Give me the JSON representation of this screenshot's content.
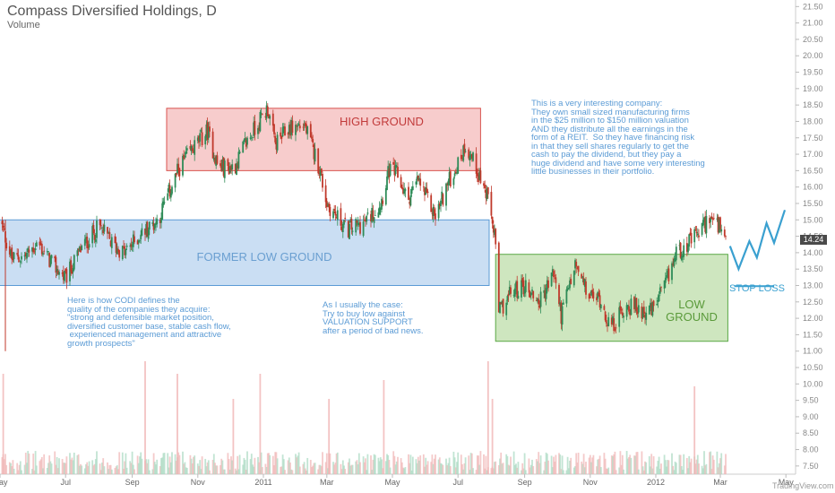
{
  "header": {
    "title": "Compass Diversified Holdings, D",
    "subtitle": "Volume"
  },
  "annotations": {
    "high_ground": "HIGH GROUND",
    "former_low_ground": "FORMER LOW GROUND",
    "low_ground": "LOW\nGROUND",
    "stop_loss": "STOP LOSS",
    "note_top_right": "This is a very interesting company:\nThey own small sized manufacturing firms\nin the $25 million to $150 million valuation\nAND they distribute all the earnings in the\nform of a REIT.  So they have financing risk\nin that they sell shares regularly to get the\ncash to pay the dividend, but they pay a\nhuge dividend and have some very interesting\nlittle businesses in their portfolio.",
    "note_bottom_left": "Here is how CODI defines the\nquality of the companies they acquire:\n\"strong and defensible market position,\ndiversified customer base, stable cash flow,\n experienced management and attractive\ngrowth prospects\"",
    "note_bottom_mid": "As I usually the case:\nTry to buy low against\nVALUATION SUPPORT\nafter a period of bad news."
  },
  "price_tag": "14.24",
  "branding": "TradingView.com",
  "colors": {
    "up": "#2e8b57",
    "down": "#c0392b",
    "high_fill": "#f4b6b6",
    "high_stroke": "#d9534f",
    "low_fill": "#b3d0ee",
    "low_stroke": "#5b9bd5",
    "green_fill": "#b9dba4",
    "green_stroke": "#5aa845",
    "projection": "#3aa0d0"
  },
  "chart_data": {
    "type": "candlestick",
    "title": "Compass Diversified Holdings, D",
    "series": [
      {
        "name": "Volume"
      }
    ],
    "x_ticks": [
      "May",
      "Jul",
      "Sep",
      "Nov",
      "2011",
      "Mar",
      "May",
      "Jul",
      "Sep",
      "Nov",
      "2012",
      "Mar",
      "May"
    ],
    "y_ticks": [
      "7.50",
      "8.00",
      "8.50",
      "9.00",
      "9.50",
      "10.00",
      "10.50",
      "11.00",
      "11.50",
      "12.00",
      "12.50",
      "13.00",
      "13.50",
      "14.00",
      "14.50",
      "15.00",
      "15.50",
      "16.00",
      "16.50",
      "17.00",
      "17.50",
      "18.00",
      "18.50",
      "19.00",
      "19.50",
      "20.00",
      "20.50",
      "21.00",
      "21.50"
    ],
    "ylim": [
      7.25,
      21.7
    ],
    "x_range": [
      "2010-05-01",
      "2012-05-10"
    ],
    "close_path": [
      [
        "2010-05-01",
        15.0
      ],
      [
        "2010-05-12",
        13.8
      ],
      [
        "2010-05-25",
        13.9
      ],
      [
        "2010-06-05",
        14.3
      ],
      [
        "2010-06-20",
        13.6
      ],
      [
        "2010-07-01",
        13.2
      ],
      [
        "2010-07-15",
        14.1
      ],
      [
        "2010-08-01",
        14.8
      ],
      [
        "2010-08-15",
        14.2
      ],
      [
        "2010-08-25",
        14.0
      ],
      [
        "2010-09-10",
        14.6
      ],
      [
        "2010-09-25",
        15.0
      ],
      [
        "2010-10-05",
        15.8
      ],
      [
        "2010-10-15",
        16.6
      ],
      [
        "2010-10-28",
        17.2
      ],
      [
        "2010-11-10",
        17.7
      ],
      [
        "2010-11-20",
        16.6
      ],
      [
        "2010-12-05",
        16.6
      ],
      [
        "2010-12-15",
        17.3
      ],
      [
        "2010-12-28",
        18.0
      ],
      [
        "2011-01-05",
        18.4
      ],
      [
        "2011-01-12",
        17.3
      ],
      [
        "2011-01-25",
        17.8
      ],
      [
        "2011-02-08",
        17.9
      ],
      [
        "2011-02-22",
        16.6
      ],
      [
        "2011-03-01",
        15.5
      ],
      [
        "2011-03-10",
        15.1
      ],
      [
        "2011-03-20",
        14.7
      ],
      [
        "2011-04-05",
        14.9
      ],
      [
        "2011-04-20",
        15.5
      ],
      [
        "2011-04-28",
        16.5
      ],
      [
        "2011-05-05",
        16.4
      ],
      [
        "2011-05-15",
        15.6
      ],
      [
        "2011-05-25",
        16.2
      ],
      [
        "2011-06-10",
        15.1
      ],
      [
        "2011-06-20",
        16.0
      ],
      [
        "2011-07-01",
        16.7
      ],
      [
        "2011-07-08",
        17.3
      ],
      [
        "2011-07-18",
        16.6
      ],
      [
        "2011-07-28",
        15.7
      ],
      [
        "2011-08-04",
        14.6
      ],
      [
        "2011-08-08",
        12.2
      ],
      [
        "2011-08-20",
        12.8
      ],
      [
        "2011-09-01",
        13.0
      ],
      [
        "2011-09-15",
        12.5
      ],
      [
        "2011-09-28",
        13.4
      ],
      [
        "2011-10-05",
        12.1
      ],
      [
        "2011-10-18",
        13.6
      ],
      [
        "2011-10-30",
        12.7
      ],
      [
        "2011-11-10",
        12.6
      ],
      [
        "2011-11-20",
        11.7
      ],
      [
        "2011-12-05",
        12.4
      ],
      [
        "2011-12-15",
        12.3
      ],
      [
        "2011-12-28",
        12.2
      ],
      [
        "2012-01-10",
        13.0
      ],
      [
        "2012-01-20",
        14.0
      ],
      [
        "2012-02-01",
        14.3
      ],
      [
        "2012-02-10",
        14.6
      ],
      [
        "2012-02-20",
        15.1
      ],
      [
        "2012-03-01",
        14.7
      ],
      [
        "2012-03-06",
        14.24
      ]
    ],
    "zones": [
      {
        "label": "HIGH GROUND",
        "from": "2010-10-03",
        "to": "2011-07-22",
        "low": 16.5,
        "high": 18.4,
        "color": "red"
      },
      {
        "label": "FORMER LOW GROUND",
        "from": "2010-04-27",
        "to": "2011-07-30",
        "low": 13.0,
        "high": 15.0,
        "color": "blue"
      },
      {
        "label": "LOW GROUND",
        "from": "2011-08-05",
        "to": "2012-03-08",
        "low": 11.3,
        "high": 13.95,
        "color": "green"
      }
    ],
    "stop_loss": {
      "from": "2012-03-14",
      "to": "2012-04-20",
      "price": 12.98
    },
    "projection": [
      [
        "2012-03-10",
        14.2
      ],
      [
        "2012-03-18",
        13.5
      ],
      [
        "2012-03-28",
        14.35
      ],
      [
        "2012-04-04",
        13.85
      ],
      [
        "2012-04-13",
        14.9
      ],
      [
        "2012-04-20",
        14.3
      ],
      [
        "2012-04-30",
        15.3
      ]
    ],
    "volume_spikes": [
      [
        "2010-05-04",
        0.8
      ],
      [
        "2010-09-13",
        0.9
      ],
      [
        "2010-10-13",
        0.8
      ],
      [
        "2010-12-04",
        0.6
      ],
      [
        "2010-12-29",
        0.8
      ],
      [
        "2011-03-03",
        0.6
      ],
      [
        "2011-04-23",
        0.75
      ],
      [
        "2011-07-29",
        0.9
      ],
      [
        "2011-08-02",
        0.6
      ],
      [
        "2012-02-06",
        0.7
      ]
    ]
  }
}
